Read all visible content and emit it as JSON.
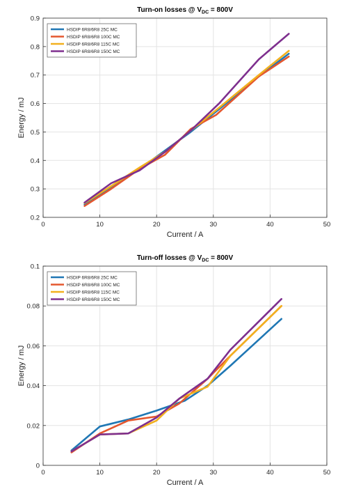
{
  "colors": {
    "series_25c": "#1f77b4",
    "series_100c": "#e4572e",
    "series_115c": "#f2b01e",
    "series_150c": "#7e2f8e",
    "grid": "#e3e3e3"
  },
  "chart_data": [
    {
      "type": "line",
      "title_main": "Turn-on losses @ V",
      "title_sub": "DC",
      "title_tail": " = 800V",
      "xlabel": "Current / A",
      "ylabel": "Energy / mJ",
      "xlim": [
        0,
        50
      ],
      "ylim": [
        0.2,
        0.9
      ],
      "xticks": [
        0,
        10,
        20,
        30,
        40,
        50
      ],
      "yticks": [
        0.2,
        0.3,
        0.4,
        0.5,
        0.6,
        0.7,
        0.8,
        0.9
      ],
      "ytick_labels": [
        "0.2",
        "0.3",
        "0.4",
        "0.5",
        "0.6",
        "0.7",
        "0.8",
        "0.9"
      ],
      "grid": true,
      "legend_position": "top-left",
      "series": [
        {
          "name": "HSDIP 6R8/6R8 25C MC",
          "color": "#1f77b4",
          "x": [
            7.3,
            12,
            17,
            21.5,
            26,
            31,
            38,
            43.3
          ],
          "y": [
            0.245,
            0.305,
            0.37,
            0.435,
            0.5,
            0.58,
            0.695,
            0.775
          ]
        },
        {
          "name": "HSDIP 6R8/6R8 100C MC",
          "color": "#e4572e",
          "x": [
            7.3,
            12,
            17,
            21.5,
            26,
            30.5,
            38,
            43.3
          ],
          "y": [
            0.24,
            0.3,
            0.37,
            0.42,
            0.51,
            0.56,
            0.695,
            0.765
          ]
        },
        {
          "name": "HSDIP 6R8/6R8 115C MC",
          "color": "#f2b01e",
          "x": [
            7.3,
            12,
            17,
            21.5,
            26,
            31,
            38,
            43.3
          ],
          "y": [
            0.25,
            0.31,
            0.375,
            0.43,
            0.505,
            0.585,
            0.7,
            0.785
          ]
        },
        {
          "name": "HSDIP 6R8/6R8 150C MC",
          "color": "#7e2f8e",
          "x": [
            7.3,
            12,
            17,
            21.5,
            26,
            31,
            38,
            43.3
          ],
          "y": [
            0.252,
            0.32,
            0.365,
            0.43,
            0.505,
            0.6,
            0.755,
            0.845
          ]
        }
      ]
    },
    {
      "type": "line",
      "title_main": "Turn-off losses @ V",
      "title_sub": "DC",
      "title_tail": " = 800V",
      "xlabel": "Current / A",
      "ylabel": "Energy / mJ",
      "xlim": [
        0,
        50
      ],
      "ylim": [
        0,
        0.1
      ],
      "xticks": [
        0,
        10,
        20,
        30,
        40,
        50
      ],
      "yticks": [
        0,
        0.02,
        0.04,
        0.06,
        0.08,
        0.1
      ],
      "ytick_labels": [
        "0",
        "0.02",
        "0.04",
        "0.06",
        "0.08",
        "0.1"
      ],
      "grid": true,
      "legend_position": "top-left",
      "series": [
        {
          "name": "HSDIP 6R8/6R8 25C MC",
          "color": "#1f77b4",
          "x": [
            5,
            10,
            15,
            20,
            25,
            29,
            33,
            42
          ],
          "y": [
            0.0075,
            0.0195,
            0.023,
            0.0275,
            0.0325,
            0.04,
            0.05,
            0.0735
          ]
        },
        {
          "name": "HSDIP 6R8/6R8 100C MC",
          "color": "#e4572e",
          "x": [
            5,
            10,
            15,
            20,
            24,
            29,
            33,
            42
          ],
          "y": [
            0.0065,
            0.016,
            0.0225,
            0.0245,
            0.031,
            0.0435,
            0.055,
            0.08
          ]
        },
        {
          "name": "HSDIP 6R8/6R8 115C MC",
          "color": "#f2b01e",
          "x": [
            5,
            10,
            15,
            20,
            24,
            29,
            33,
            42
          ],
          "y": [
            0.007,
            0.0155,
            0.016,
            0.0225,
            0.0335,
            0.0395,
            0.055,
            0.08
          ]
        },
        {
          "name": "HSDIP 6R8/6R8 150C MC",
          "color": "#7e2f8e",
          "x": [
            5,
            10,
            15,
            20,
            24,
            29,
            33,
            42
          ],
          "y": [
            0.007,
            0.0155,
            0.016,
            0.024,
            0.0335,
            0.0435,
            0.058,
            0.0835
          ]
        }
      ]
    }
  ]
}
